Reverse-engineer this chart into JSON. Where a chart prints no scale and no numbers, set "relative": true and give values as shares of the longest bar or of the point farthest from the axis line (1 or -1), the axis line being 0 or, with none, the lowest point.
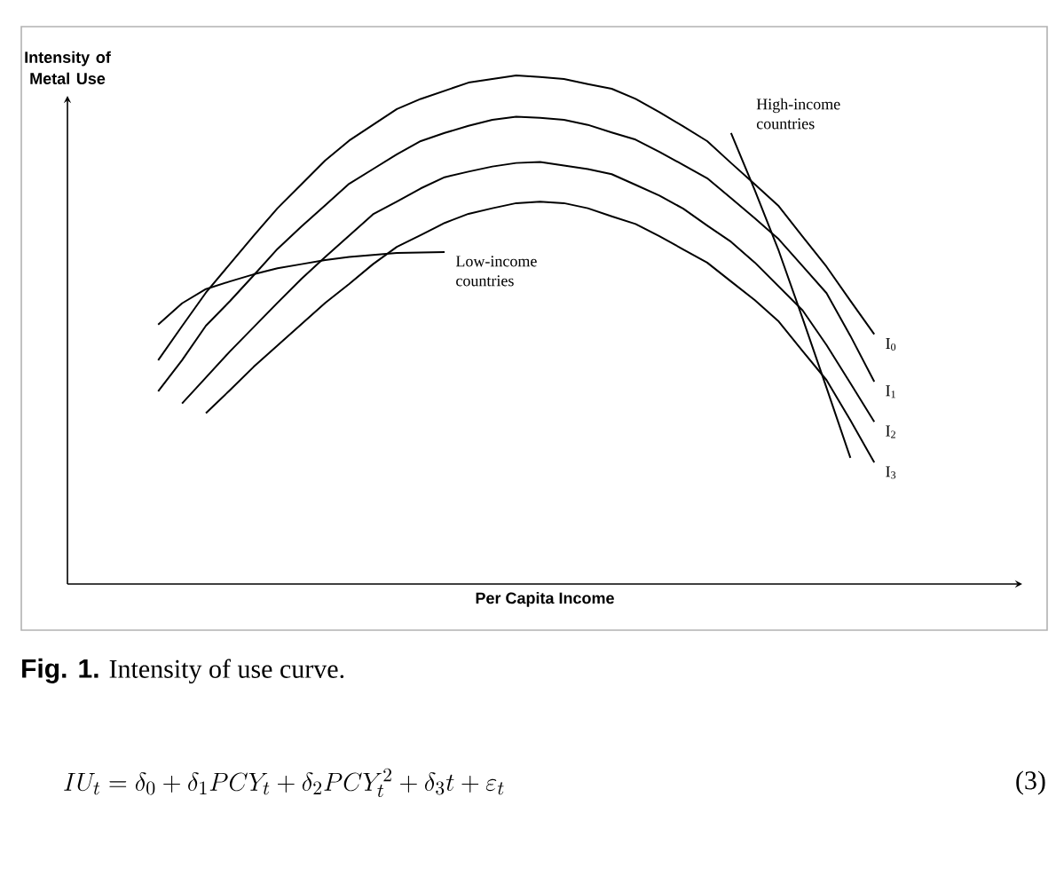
{
  "chart_data": {
    "type": "line",
    "relative": true,
    "xlabel": "Per Capita Income",
    "ylabel": "Intensity of Metal Use",
    "marker": "none",
    "line_style": "solid",
    "categories": [
      null,
      null,
      null,
      null,
      null,
      null,
      null,
      null,
      null,
      null,
      null,
      null,
      null,
      null,
      null,
      null,
      null,
      null,
      null,
      null,
      null,
      null,
      null,
      null,
      null,
      null,
      null,
      null,
      null,
      null,
      null,
      null
    ],
    "series": [
      {
        "name": "I$_{0}$",
        "color": "#000000",
        "values": [
          null,
          0.44,
          0.507,
          0.573,
          0.629,
          0.685,
          0.739,
          0.786,
          0.833,
          0.872,
          0.903,
          0.934,
          0.954,
          0.97,
          0.986,
          0.993,
          1.0,
          0.997,
          0.993,
          0.983,
          0.974,
          0.954,
          0.928,
          0.9,
          0.871,
          0.828,
          0.786,
          0.743,
          0.683,
          0.624,
          0.557,
          0.491
        ]
      },
      {
        "name": "I$_{1}$",
        "color": "#000000",
        "values": [
          null,
          0.379,
          0.44,
          0.508,
          0.556,
          0.607,
          0.659,
          0.703,
          0.745,
          0.787,
          0.816,
          0.845,
          0.871,
          0.887,
          0.901,
          0.913,
          0.919,
          0.917,
          0.913,
          0.903,
          0.888,
          0.874,
          0.85,
          0.824,
          0.798,
          0.759,
          0.719,
          0.678,
          0.625,
          0.572,
          0.488,
          0.398
        ]
      },
      {
        "name": "I$_{2}$",
        "color": "#000000",
        "values": [
          null,
          null,
          0.355,
          0.406,
          0.457,
          0.505,
          0.553,
          0.6,
          0.643,
          0.685,
          0.727,
          0.752,
          0.778,
          0.8,
          0.811,
          0.821,
          0.828,
          0.83,
          0.823,
          0.816,
          0.806,
          0.785,
          0.764,
          0.738,
          0.705,
          0.673,
          0.632,
          0.585,
          0.538,
          0.47,
          0.395,
          0.319
        ]
      },
      {
        "name": "I$_{3}$",
        "color": "#000000",
        "values": [
          null,
          null,
          null,
          0.336,
          0.381,
          0.427,
          0.469,
          0.511,
          0.553,
          0.59,
          0.629,
          0.663,
          0.686,
          0.71,
          0.728,
          0.739,
          0.749,
          0.752,
          0.749,
          0.739,
          0.723,
          0.708,
          0.684,
          0.658,
          0.632,
          0.595,
          0.558,
          0.516,
          0.458,
          0.401,
          0.322,
          0.239
        ]
      },
      {
        "name": "Low-income countries",
        "color": "#000000",
        "values": [
          null,
          0.51,
          0.552,
          0.58,
          0.595,
          0.609,
          0.621,
          0.629,
          0.637,
          0.643,
          0.647,
          0.651,
          0.652,
          0.653,
          null,
          null,
          null,
          null,
          null,
          null,
          null,
          null,
          null,
          null,
          null,
          null,
          null,
          null,
          null,
          null,
          null,
          null
        ]
      },
      {
        "name": "High-income countries",
        "color": "#000000",
        "values": [
          null,
          null,
          null,
          null,
          null,
          null,
          null,
          null,
          null,
          null,
          null,
          null,
          null,
          null,
          null,
          null,
          null,
          null,
          null,
          null,
          null,
          null,
          null,
          null,
          null,
          0.887,
          0.774,
          0.655,
          0.522,
          0.386,
          0.248,
          null
        ]
      }
    ],
    "annotations": [
      "**Fig. 1.** Intensity of use curve.",
      "IU_t=\\delta_0+\\delta_1 PCY_t+\\delta_2 PCY_t^2+\\delta_3 t+\\varepsilon_t",
      "(3)"
    ]
  }
}
